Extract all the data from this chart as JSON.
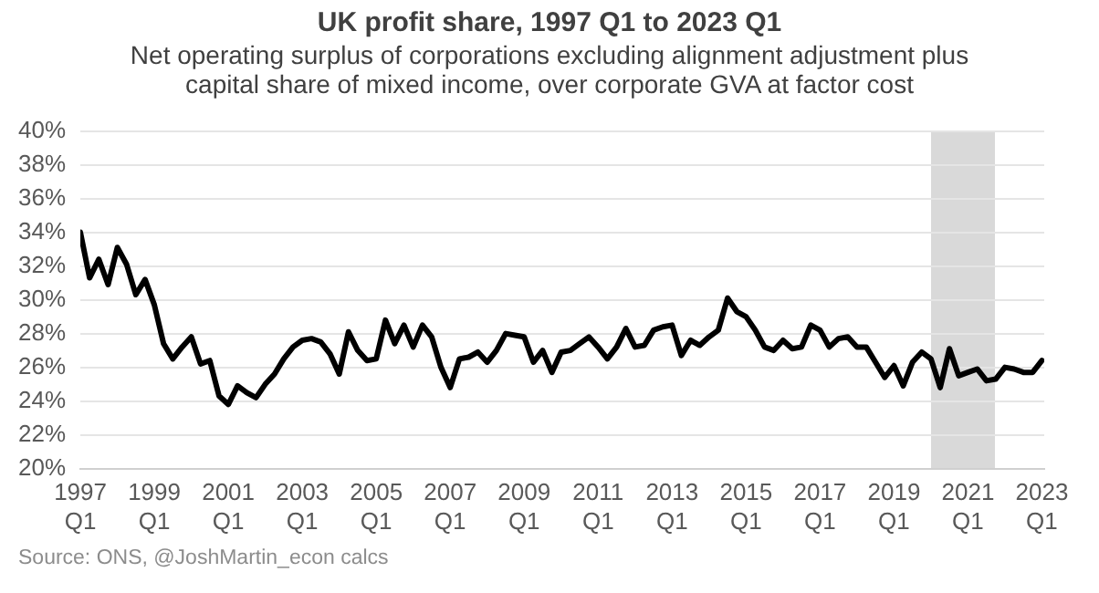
{
  "chart_data": {
    "type": "line",
    "title": "UK profit share, 1997 Q1 to 2023 Q1",
    "subtitle": "Net operating surplus of corporations excluding alignment adjustment plus capital share of mixed income, over corporate GVA at factor cost",
    "annotations": [
      "Source: ONS, @JoshMartin_econ calcs"
    ],
    "categories": [
      "1997\nQ1",
      null,
      null,
      null,
      null,
      null,
      null,
      null,
      "1999\nQ1",
      null,
      null,
      null,
      null,
      null,
      null,
      null,
      "2001\nQ1",
      null,
      null,
      null,
      null,
      null,
      null,
      null,
      "2003\nQ1",
      null,
      null,
      null,
      null,
      null,
      null,
      null,
      "2005\nQ1",
      null,
      null,
      null,
      null,
      null,
      null,
      null,
      "2007\nQ1",
      null,
      null,
      null,
      null,
      null,
      null,
      null,
      "2009\nQ1",
      null,
      null,
      null,
      null,
      null,
      null,
      null,
      "2011\nQ1",
      null,
      null,
      null,
      null,
      null,
      null,
      null,
      "2013\nQ1",
      null,
      null,
      null,
      null,
      null,
      null,
      null,
      "2015\nQ1",
      null,
      null,
      null,
      null,
      null,
      null,
      null,
      "2017\nQ1",
      null,
      null,
      null,
      null,
      null,
      null,
      null,
      "2019\nQ1",
      null,
      null,
      null,
      null,
      null,
      null,
      null,
      "2021\nQ1",
      null,
      null,
      null,
      null,
      null,
      null,
      null,
      "2023\nQ1"
    ],
    "series": [
      {
        "color": "#000000",
        "values": [
          34.0,
          31.3,
          32.4,
          30.9,
          33.1,
          32.1,
          30.3,
          31.2,
          29.7,
          27.4,
          26.5,
          27.2,
          27.8,
          26.2,
          26.4,
          24.3,
          23.8,
          24.9,
          24.5,
          24.2,
          25.0,
          25.6,
          26.5,
          27.2,
          27.6,
          27.7,
          27.5,
          26.8,
          25.6,
          28.1,
          27.0,
          26.4,
          26.5,
          28.8,
          27.4,
          28.5,
          27.2,
          28.5,
          27.8,
          26.0,
          24.8,
          26.5,
          26.6,
          26.9,
          26.3,
          27.0,
          28.0,
          27.9,
          27.8,
          26.3,
          27.0,
          25.7,
          26.9,
          27.0,
          27.4,
          27.8,
          27.2,
          26.5,
          27.2,
          28.3,
          27.2,
          27.3,
          28.2,
          28.4,
          28.5,
          26.7,
          27.6,
          27.3,
          27.8,
          28.2,
          30.1,
          29.3,
          29.0,
          28.2,
          27.2,
          27.0,
          27.6,
          27.1,
          27.2,
          28.5,
          28.2,
          27.2,
          27.7,
          27.8,
          27.2,
          27.2,
          26.3,
          25.4,
          26.1,
          24.9,
          26.3,
          26.9,
          26.5,
          24.8,
          27.1,
          25.5,
          25.7,
          25.9,
          25.2,
          25.3,
          26.0,
          25.9,
          25.7,
          25.7,
          26.4
        ]
      }
    ],
    "ylim": [
      20,
      40
    ],
    "yticks": [
      {
        "value": 20,
        "label": "20%"
      },
      {
        "value": 22,
        "label": "22%"
      },
      {
        "value": 24,
        "label": "24%"
      },
      {
        "value": 26,
        "label": "26%"
      },
      {
        "value": 28,
        "label": "28%"
      },
      {
        "value": 30,
        "label": "30%"
      },
      {
        "value": 32,
        "label": "32%"
      },
      {
        "value": 34,
        "label": "34%"
      },
      {
        "value": 36,
        "label": "36%"
      },
      {
        "value": 38,
        "label": "38%"
      },
      {
        "value": 40,
        "label": "40%"
      }
    ],
    "grid": "y",
    "legend": false,
    "marker": "none",
    "line_style": "solid"
  }
}
